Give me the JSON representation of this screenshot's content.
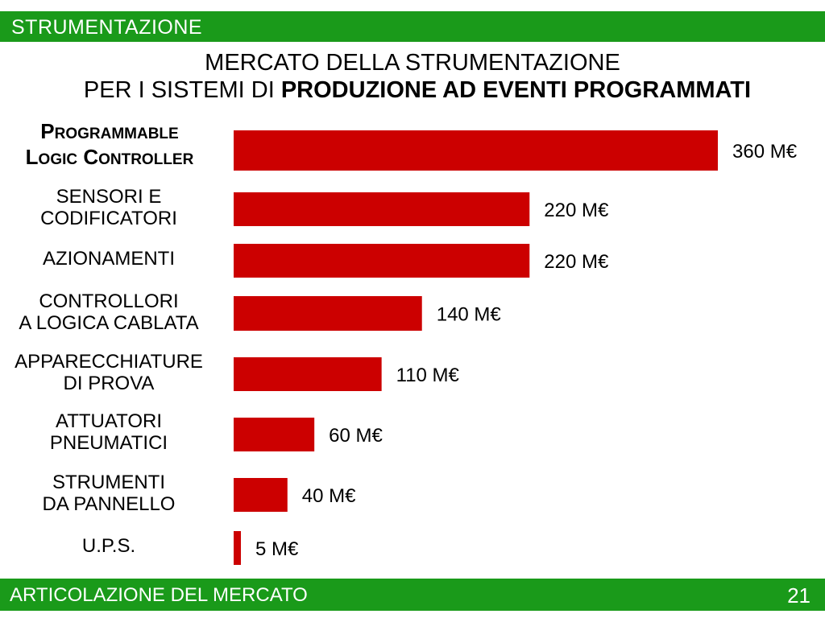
{
  "header": {
    "section": "STRUMENTAZIONE"
  },
  "title": {
    "line1": "MERCATO DELLA STRUMENTAZIONE",
    "line2_normal": "PER I SISTEMI DI ",
    "line2_bold": "PRODUZIONE AD EVENTI PROGRAMMATI"
  },
  "footer": {
    "text": "ARTICOLAZIONE DEL MERCATO",
    "page": "21"
  },
  "colors": {
    "bar": "#cc0000",
    "band": "#1a9a1a"
  },
  "chart_data": {
    "type": "bar",
    "orientation": "horizontal",
    "title": "MERCATO DELLA STRUMENTAZIONE PER I SISTEMI DI PRODUZIONE AD EVENTI PROGRAMMATI",
    "categories": [
      [
        "PROGRAMMABLE",
        "LOGIC CONTROLLER"
      ],
      [
        "SENSORI E",
        "CODIFICATORI"
      ],
      [
        "AZIONAMENTI"
      ],
      [
        "CONTROLLORI",
        "A LOGICA CABLATA"
      ],
      [
        "APPARECCHIATURE",
        "DI PROVA"
      ],
      [
        "ATTUATORI",
        "PNEUMATICI"
      ],
      [
        "STRUMENTI",
        "DA PANNELLO"
      ],
      [
        "U.P.S."
      ]
    ],
    "values": [
      360,
      220,
      220,
      140,
      110,
      60,
      40,
      5
    ],
    "value_labels": [
      "360 M€",
      "220 M€",
      "220 M€",
      "140 M€",
      "110 M€",
      "60 M€",
      "40 M€",
      "5 M€"
    ],
    "unit": "M€",
    "xlim": [
      0,
      360
    ],
    "grid": false,
    "legend": "none"
  }
}
